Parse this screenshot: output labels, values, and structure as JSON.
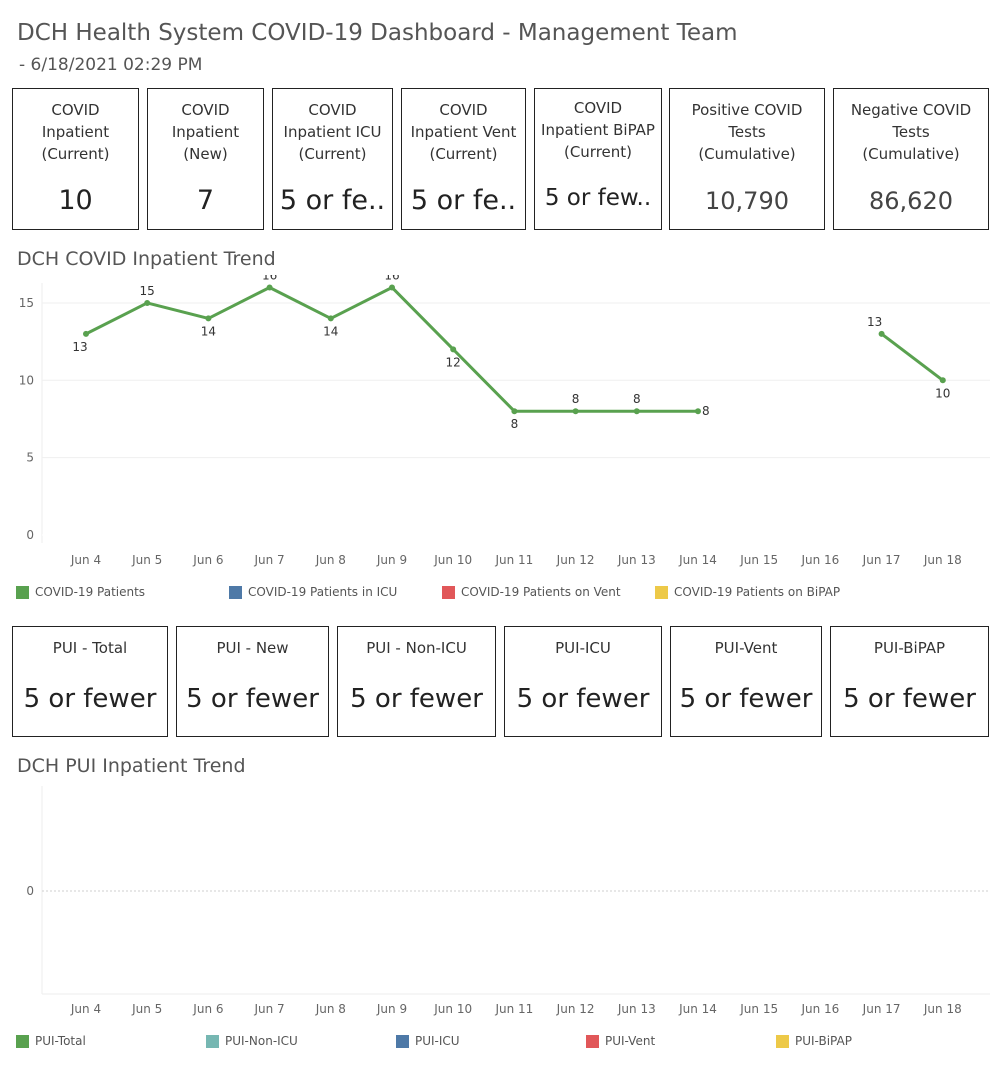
{
  "header": {
    "title": "DCH Health System COVID-19 Dashboard - Management Team",
    "subtitle": "- 6/18/2021 02:29 PM"
  },
  "covid_cards": [
    {
      "label": "COVID\nInpatient\n(Current)",
      "value": "10"
    },
    {
      "label": "COVID\nInpatient\n(New)",
      "value": "7"
    },
    {
      "label": "COVID\nInpatient ICU\n(Current)",
      "value": "5 or fe.."
    },
    {
      "label": "COVID\nInpatient Vent\n(Current)",
      "value": "5 or fe.."
    },
    {
      "label": "COVID\nInpatient BiPAP\n(Current)",
      "value": "5 or few.."
    },
    {
      "label": "Positive COVID\nTests\n(Cumulative)",
      "value": "10,790"
    },
    {
      "label": "Negative COVID\nTests\n(Cumulative)",
      "value": "86,620"
    }
  ],
  "pui_cards": [
    {
      "label": "PUI - Total",
      "value": "5 or fewer"
    },
    {
      "label": "PUI - New",
      "value": "5 or fewer"
    },
    {
      "label": "PUI - Non-ICU",
      "value": "5 or fewer"
    },
    {
      "label": "PUI-ICU",
      "value": "5 or fewer"
    },
    {
      "label": "PUI-Vent",
      "value": "5 or fewer"
    },
    {
      "label": "PUI-BiPAP",
      "value": "5 or fewer"
    }
  ],
  "chart_data": [
    {
      "type": "line",
      "title": "DCH COVID Inpatient Trend",
      "categories": [
        "Jun 4",
        "Jun 5",
        "Jun 6",
        "Jun 7",
        "Jun 8",
        "Jun 9",
        "Jun 10",
        "Jun 11",
        "Jun 12",
        "Jun 13",
        "Jun 14",
        "Jun 15",
        "Jun 16",
        "Jun 17",
        "Jun 18"
      ],
      "yticks": [
        0,
        5,
        10,
        15
      ],
      "ylim": [
        0,
        17.5
      ],
      "grid": true,
      "series": [
        {
          "name": "COVID-19 Patients",
          "color": "#59a14f",
          "values": [
            13,
            15,
            14,
            16,
            14,
            16,
            12,
            8,
            8,
            8,
            8,
            null,
            null,
            13,
            10
          ]
        }
      ],
      "legend": [
        {
          "label": "COVID-19 Patients",
          "color": "#59a14f"
        },
        {
          "label": "COVID-19 Patients in ICU",
          "color": "#4e79a7"
        },
        {
          "label": "COVID-19 Patients on Vent",
          "color": "#e15759"
        },
        {
          "label": "COVID-19 Patients on BiPAP",
          "color": "#edc948"
        }
      ],
      "legend_position": "bottom"
    },
    {
      "type": "line",
      "title": "DCH PUI Inpatient Trend",
      "categories": [
        "Jun 4",
        "Jun 5",
        "Jun 6",
        "Jun 7",
        "Jun 8",
        "Jun 9",
        "Jun 10",
        "Jun 11",
        "Jun 12",
        "Jun 13",
        "Jun 14",
        "Jun 15",
        "Jun 16",
        "Jun 17",
        "Jun 18"
      ],
      "yticks": [
        0
      ],
      "series": [],
      "legend": [
        {
          "label": "PUI-Total",
          "color": "#59a14f"
        },
        {
          "label": "PUI-Non-ICU",
          "color": "#76b7b2"
        },
        {
          "label": "PUI-ICU",
          "color": "#4e79a7"
        },
        {
          "label": "PUI-Vent",
          "color": "#e15759"
        },
        {
          "label": "PUI-BiPAP",
          "color": "#edc948"
        }
      ],
      "legend_position": "bottom"
    }
  ]
}
